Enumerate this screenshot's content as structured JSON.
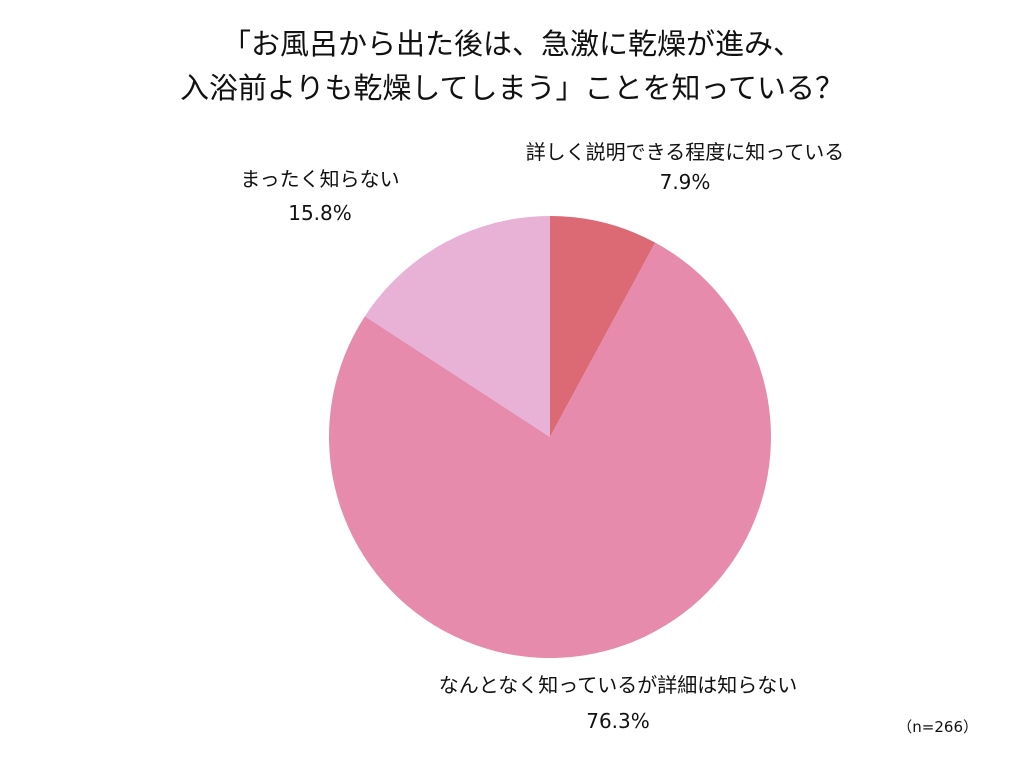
{
  "chart_data": {
    "type": "pie",
    "title_lines": [
      "「お風呂から出た後は、急激に乾燥が進み、",
      "入浴前よりも乾燥してしまう」ことを知っている？"
    ],
    "categories": [
      "詳しく説明できる程度に知っている",
      "なんとなく知っているが詳細は知らない",
      "まったく知らない"
    ],
    "values": [
      7.9,
      76.3,
      15.8
    ],
    "value_labels": [
      "7.9%",
      "76.3%",
      "15.8%"
    ],
    "colors": [
      "#DB6A75",
      "#E68BAC",
      "#E8B1D6"
    ],
    "start": "12 o'clock, clockwise",
    "note": "（n=266）"
  }
}
